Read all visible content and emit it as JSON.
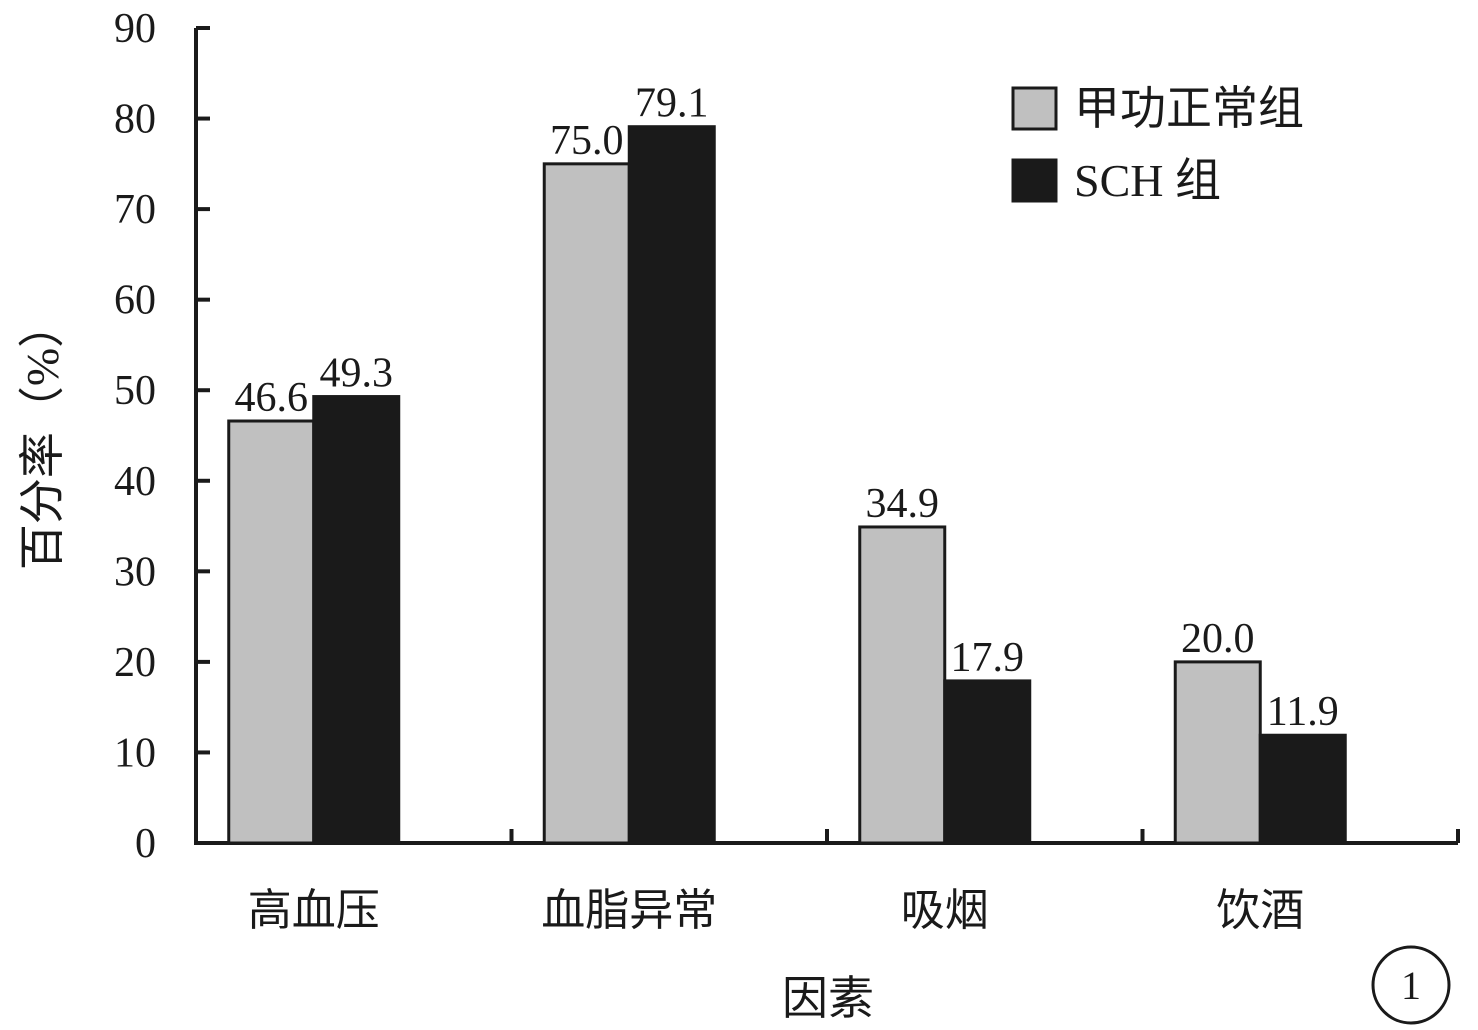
{
  "chart_data": {
    "type": "bar",
    "title": "",
    "xlabel": "因素",
    "ylabel": "百分率（%）",
    "ylim": [
      0,
      90
    ],
    "yticks": [
      0,
      10,
      20,
      30,
      40,
      50,
      60,
      70,
      80,
      90
    ],
    "categories": [
      "高血压",
      "血脂异常",
      "吸烟",
      "饮酒"
    ],
    "series": [
      {
        "name": "甲功正常组",
        "color": "#c0c0c0",
        "values": [
          46.6,
          75.0,
          34.9,
          20.0
        ],
        "labels": [
          "46.6",
          "75.0",
          "34.9",
          "20.0"
        ]
      },
      {
        "name": "SCH 组",
        "color": "#1a1a1a",
        "values": [
          49.3,
          79.1,
          17.9,
          11.9
        ],
        "labels": [
          "49.3",
          "79.1",
          "17.9",
          "11.9"
        ]
      }
    ],
    "legend_position": "top-right",
    "grid": false,
    "panel_label": "1"
  }
}
